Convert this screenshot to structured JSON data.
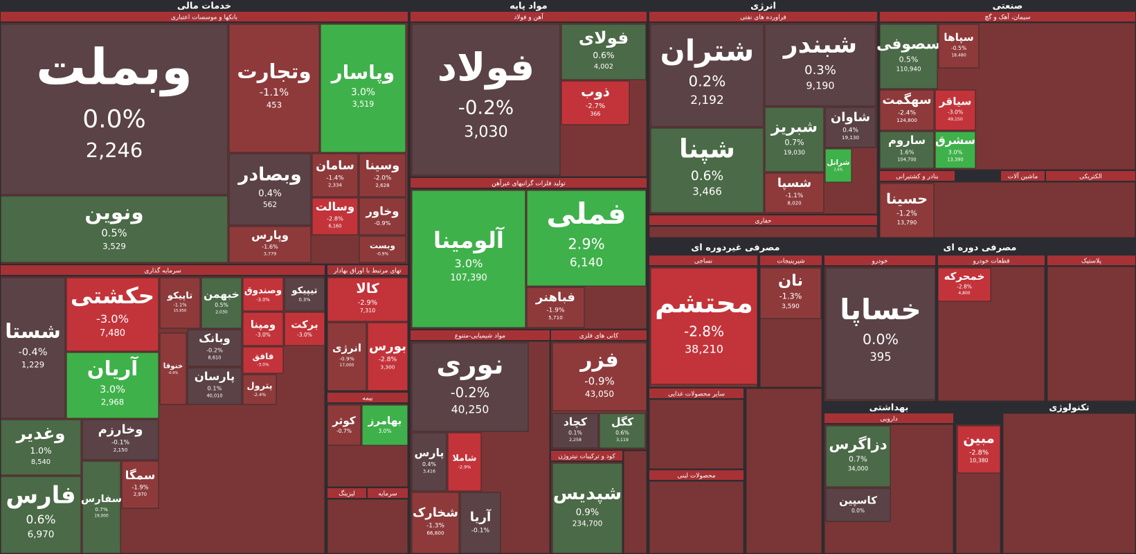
{
  "headers": [
    "خدمات مالی",
    "بانکها و موسسات اعتباری",
    "سرمایه گذاری",
    "تهای مرتبط با اوراق بهادار",
    "بیمه",
    "لیزینگ",
    "سرمایه",
    "مواد پایه",
    "آهن و فولاد",
    "تولید فلزات گرانبهای غیرآهن",
    "مواد شیمیایی-متنوع",
    "کانی های فلزی",
    "کود و ترکیبات نیتروژن",
    "انرژی",
    "فراورده های نفتی",
    "حفاری",
    "صنعتی",
    "سیمان، آهک و گچ",
    "بنادر و کشتیرانی",
    "ماشین آلات",
    "الکتریکی",
    "مصرفی غیردوره ای",
    "نساجی",
    "شیرینیجات",
    "سایر محصولات غذایی",
    "محصولات لبنی",
    "مصرفی دوره ای",
    "خودرو",
    "قطعات خودرو",
    "پلاستیک",
    "بهداشتی",
    "دارویی",
    "تکنولوژی"
  ],
  "tiles": [
    {
      "name": "وبملت",
      "change": "0.0%",
      "value": "2,246"
    },
    {
      "name": "ونوین",
      "change": "0.5%",
      "value": "3,529"
    },
    {
      "name": "وتجارت",
      "change": "-1.1%",
      "value": "453"
    },
    {
      "name": "وپاسار",
      "change": "3.0%",
      "value": "3,519"
    },
    {
      "name": "وبصادر",
      "change": "0.4%",
      "value": "562"
    },
    {
      "name": "وپارس",
      "change": "-1.6%",
      "value": "3,779"
    },
    {
      "name": "سامان",
      "change": "-1.4%",
      "value": "2,334"
    },
    {
      "name": "وسینا",
      "change": "-2.0%",
      "value": "2,628"
    },
    {
      "name": "وسالت",
      "change": "-2.8%",
      "value": "6,160"
    },
    {
      "name": "وخاور",
      "change": "-0.9%"
    },
    {
      "name": "وبست",
      "change": "-0.9%"
    },
    {
      "name": "شستا",
      "change": "-0.4%",
      "value": "1,229"
    },
    {
      "name": "وغدیر",
      "change": "1.0%",
      "value": "8,540"
    },
    {
      "name": "فارس",
      "change": "0.6%",
      "value": "6,970"
    },
    {
      "name": "حکشتی",
      "change": "-3.0%",
      "value": "7,480"
    },
    {
      "name": "آریان",
      "change": "3.0%",
      "value": "2,968"
    },
    {
      "name": "وخارزم",
      "change": "-0.1%",
      "value": "2,150"
    },
    {
      "name": "سفارس",
      "change": "0.7%",
      "value": "19,000"
    },
    {
      "name": "سمگا",
      "change": "-1.9%",
      "value": "2,970"
    },
    {
      "name": "تاپیکو",
      "change": "-1.1%",
      "value": "15,950"
    },
    {
      "name": "خبهمن",
      "change": "0.5%",
      "value": "2,030"
    },
    {
      "name": "وصندوق",
      "change": "-3.0%"
    },
    {
      "name": "تیپیکو",
      "change": "0.3%"
    },
    {
      "name": "ومپنا",
      "change": "-3.0%"
    },
    {
      "name": "برکت",
      "change": "-3.0%"
    },
    {
      "name": "وبانک",
      "change": "-0.2%",
      "value": "8,610"
    },
    {
      "name": "خنوقا",
      "change": "-0.9%"
    },
    {
      "name": "فافق",
      "change": "-3.0%"
    },
    {
      "name": "پارسان",
      "change": "0.1%",
      "value": "40,010"
    },
    {
      "name": "پترول",
      "change": "-2.4%"
    },
    {
      "name": "کالا",
      "change": "-2.9%",
      "value": "7,310"
    },
    {
      "name": "انرژی",
      "change": "-0.9%",
      "value": "17,000"
    },
    {
      "name": "بورس",
      "change": "-2.8%",
      "value": "3,300"
    },
    {
      "name": "کوثر",
      "change": "-0.7%"
    },
    {
      "name": "بهامرز",
      "change": "3.0%"
    },
    {
      "name": "فولاد",
      "change": "-0.2%",
      "value": "3,030"
    },
    {
      "name": "فولای",
      "change": "0.6%",
      "value": "4,002"
    },
    {
      "name": "ذوب",
      "change": "-2.7%",
      "value": "366"
    },
    {
      "name": "آلومینا",
      "change": "3.0%",
      "value": "107,390"
    },
    {
      "name": "فملی",
      "change": "2.9%",
      "value": "6,140"
    },
    {
      "name": "فباهنر",
      "change": "-1.9%",
      "value": "5,710"
    },
    {
      "name": "نوری",
      "change": "-0.2%",
      "value": "40,250"
    },
    {
      "name": "پارس",
      "change": "0.4%",
      "value": "3,416"
    },
    {
      "name": "شاملا",
      "change": "-2.9%"
    },
    {
      "name": "شخارک",
      "change": "-1.3%",
      "value": "66,600"
    },
    {
      "name": "آریا",
      "change": "-0.1%"
    },
    {
      "name": "فزر",
      "change": "-0.9%",
      "value": "43,050"
    },
    {
      "name": "کچاد",
      "change": "0.1%",
      "value": "2,258"
    },
    {
      "name": "کگل",
      "change": "0.6%",
      "value": "3,119"
    },
    {
      "name": "شپدیس",
      "change": "0.9%",
      "value": "234,700"
    },
    {
      "name": "شتران",
      "change": "0.2%",
      "value": "2,192"
    },
    {
      "name": "شبندر",
      "change": "0.3%",
      "value": "9,190"
    },
    {
      "name": "شپنا",
      "change": "0.6%",
      "value": "3,466"
    },
    {
      "name": "شاوان",
      "change": "0.4%",
      "value": "19,130"
    },
    {
      "name": "شبریز",
      "change": "0.7%",
      "value": "19,030"
    },
    {
      "name": "شسپا",
      "change": "-1.1%",
      "value": "8,020"
    },
    {
      "name": "شرانل",
      "change": "2.6%"
    },
    {
      "name": "سصوفی",
      "change": "0.5%",
      "value": "110,940"
    },
    {
      "name": "سهگمت",
      "change": "-2.4%",
      "value": "124,800"
    },
    {
      "name": "ساروم",
      "change": "1.6%",
      "value": "104,700"
    },
    {
      "name": "سپاها",
      "change": "-0.5%",
      "value": "18,480"
    },
    {
      "name": "سیاقر",
      "change": "-3.0%",
      "value": "49,150"
    },
    {
      "name": "سشرق",
      "change": "3.0%",
      "value": "13,390"
    },
    {
      "name": "حسینا",
      "change": "-1.2%",
      "value": "13,790"
    },
    {
      "name": "محتشم",
      "change": "-2.8%",
      "value": "38,210"
    },
    {
      "name": "نان",
      "change": "-1.3%",
      "value": "3,590"
    },
    {
      "name": "خساپا",
      "change": "0.0%",
      "value": "395"
    },
    {
      "name": "خمحرکه",
      "change": "-2.8%",
      "value": "4,800"
    },
    {
      "name": "دزاگرس",
      "change": "0.7%",
      "value": "34,000"
    },
    {
      "name": "کاسپین",
      "change": "0.0%"
    },
    {
      "name": "مبین",
      "change": "-2.8%",
      "value": "10,380"
    }
  ]
}
